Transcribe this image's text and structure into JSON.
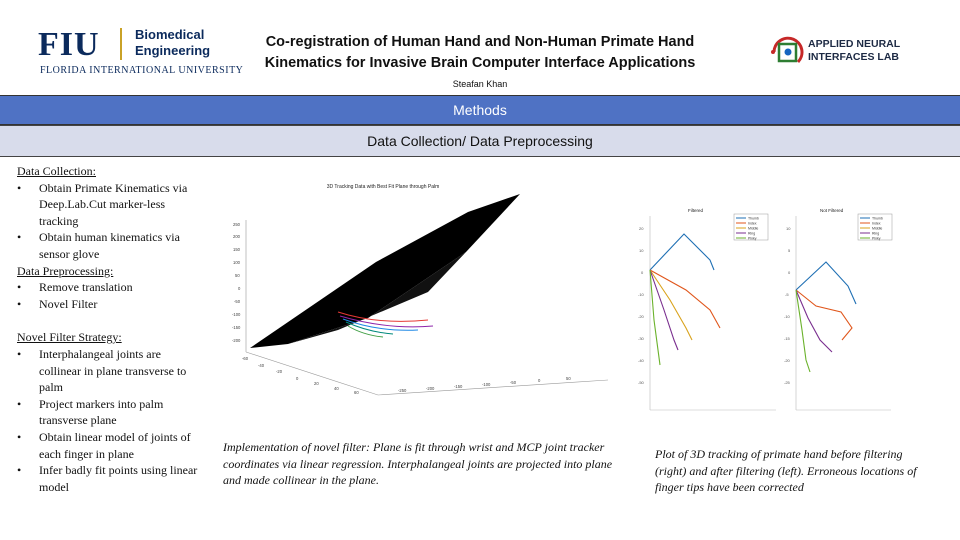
{
  "header": {
    "fiu_logo": {
      "letters": "FIU",
      "dept_line1": "Biomedical",
      "dept_line2": "Engineering",
      "university": "FLORIDA INTERNATIONAL UNIVERSITY"
    },
    "title_line1": "Co-registration of Human Hand and Non-Human Primate Hand",
    "title_line2": "Kinematics for Invasive Brain Computer Interface Applications",
    "author": "Steafan Khan",
    "lab_logo": {
      "line1": "APPLIED NEURAL",
      "line2": "INTERFACES LAB"
    }
  },
  "methods_bar": {
    "label": "Methods"
  },
  "section_bar": {
    "label": "Data Collection/ Data Preprocessing"
  },
  "left_text": {
    "data_collection_heading": "Data Collection:",
    "data_collection_items": [
      "Obtain Primate Kinematics via Deep.Lab.Cut marker-less tracking",
      "Obtain human kinematics via sensor glove"
    ],
    "preprocessing_heading": "Data Preprocessing:",
    "preprocessing_items": [
      "Remove translation",
      "Novel Filter"
    ],
    "strategy_heading": "Novel Filter Strategy:",
    "strategy_items": [
      "Interphalangeal joints are collinear in plane transverse to palm",
      "Project markers into palm transverse plane",
      "Obtain linear model of joints of each finger in plane",
      "Infer badly fit points using linear model"
    ]
  },
  "figure1": {
    "title": "3D Tracking Data with Best Fit Plane through Palm"
  },
  "figure2": {
    "left_title": "Filtered",
    "right_title": "Not Filtered",
    "legend": [
      "Thumb",
      "Index",
      "Middle",
      "Ring",
      "Pinky"
    ]
  },
  "captions": {
    "figure1": "Implementation of novel filter: Plane is fit through wrist and MCP joint tracker coordinates via linear regression. Interphalangeal joints are projected into plane and made collinear in the plane.",
    "figure2": "Plot of 3D tracking of primate hand before filtering (right) and after filtering (left). Erroneous locations of finger tips have been corrected"
  },
  "colors": {
    "navy": "#0b2a5c",
    "gold": "#c9a227",
    "methods_bar": "#4f72c4",
    "section_bar": "#d8dceb"
  }
}
